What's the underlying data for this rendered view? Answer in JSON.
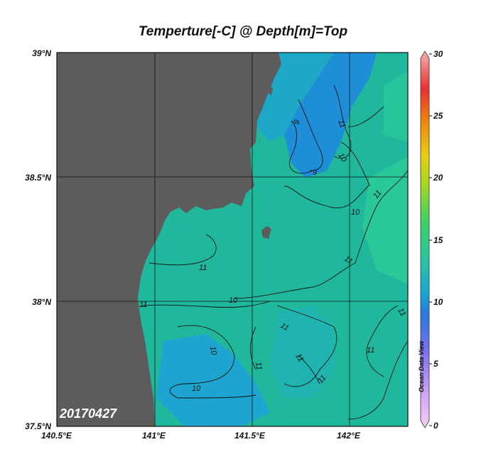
{
  "title": "Temperture[-C] @ Depth[m]=Top",
  "date_stamp": "20170427",
  "watermark": "Ocean Data View",
  "axes": {
    "y_ticks": [
      "39°N",
      "38.5°N",
      "38°N",
      "37.5°N"
    ],
    "x_ticks": [
      "140.5°E",
      "141°E",
      "141.5°E",
      "142°E"
    ],
    "lat_range": [
      37.5,
      39.0
    ],
    "lon_range": [
      140.5,
      142.3
    ],
    "grid": true
  },
  "colorbar": {
    "ticks": [
      "30",
      "25",
      "20",
      "15",
      "10",
      "5",
      "0"
    ],
    "range": [
      0,
      30
    ],
    "colors": [
      "#f4d0f4",
      "#9c6cf0",
      "#2a6ce0",
      "#18b0c8",
      "#30c890",
      "#40d050",
      "#a8d820",
      "#f0d010",
      "#f08010",
      "#e83030",
      "#f4a0a0"
    ]
  },
  "contour_labels": [
    "9",
    "9",
    "10",
    "10",
    "10",
    "10",
    "10",
    "11",
    "11",
    "11",
    "11",
    "11",
    "11",
    "11",
    "11",
    "11",
    "11",
    "11"
  ],
  "colors": {
    "land": "#5d5b5b",
    "sea": "#1fb8a8"
  }
}
